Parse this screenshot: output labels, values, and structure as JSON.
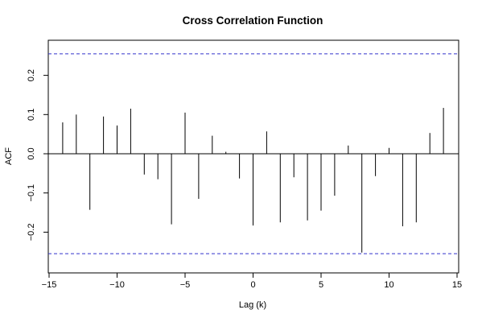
{
  "chart_data": {
    "type": "bar",
    "title": "Cross Correlation Function",
    "xlabel": "Lag (k)",
    "ylabel": "ACF",
    "xlim": [
      -15.2,
      15.2
    ],
    "ylim": [
      -0.26,
      0.26
    ],
    "x_ticks": [
      -15,
      -10,
      -5,
      0,
      5,
      10,
      15
    ],
    "x_tick_labels": [
      "−15",
      "−10",
      "−5",
      "0",
      "5",
      "10",
      "15"
    ],
    "y_ticks": [
      -0.2,
      -0.1,
      0.0,
      0.1,
      0.2
    ],
    "y_tick_labels": [
      "−0.2",
      "−0.1",
      "0.0",
      "0.1",
      "0.2"
    ],
    "confidence_band": [
      -0.255,
      0.255
    ],
    "band_color": "#3333cc",
    "zero_line": true,
    "lags": [
      -14,
      -13,
      -12,
      -11,
      -10,
      -9,
      -8,
      -7,
      -6,
      -5,
      -4,
      -3,
      -2,
      -1,
      0,
      1,
      2,
      3,
      4,
      5,
      6,
      7,
      8,
      9,
      10,
      11,
      12,
      13,
      14
    ],
    "values": [
      0.08,
      0.1,
      -0.143,
      0.095,
      0.072,
      0.115,
      -0.053,
      -0.065,
      -0.18,
      0.105,
      -0.115,
      0.046,
      0.005,
      -0.063,
      -0.183,
      0.057,
      -0.175,
      -0.06,
      -0.17,
      -0.145,
      -0.107,
      0.021,
      -0.252,
      -0.057,
      0.015,
      -0.185,
      -0.175,
      0.053,
      0.117
    ]
  }
}
